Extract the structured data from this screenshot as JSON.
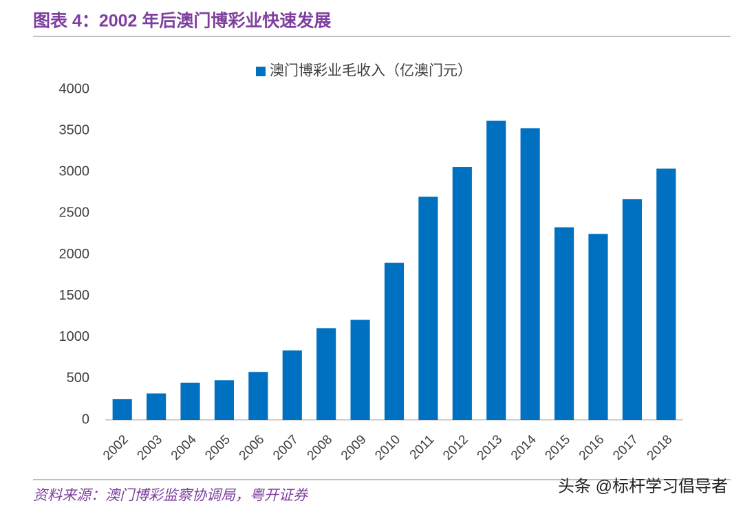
{
  "chart_data": {
    "type": "bar",
    "title": "图表 4：2002 年后澳门博彩业快速发展",
    "categories": [
      "2002",
      "2003",
      "2004",
      "2005",
      "2006",
      "2007",
      "2008",
      "2009",
      "2010",
      "2011",
      "2012",
      "2013",
      "2014",
      "2015",
      "2016",
      "2017",
      "2018"
    ],
    "series": [
      {
        "name": "澳门博彩业毛收入（亿澳门元）",
        "color": "#0070c0",
        "values": [
          250,
          320,
          450,
          480,
          580,
          840,
          1110,
          1210,
          1900,
          2700,
          3060,
          3620,
          3530,
          2330,
          2250,
          2670,
          3040
        ]
      }
    ],
    "ylim": [
      0,
      4000
    ],
    "yticks": [
      0,
      500,
      1000,
      1500,
      2000,
      2500,
      3000,
      3500,
      4000
    ],
    "grid": false,
    "legend": "top",
    "source": "资料来源：澳门博彩监察协调局，粤开证券",
    "watermark": "头条 @标杆学习倡导者"
  }
}
